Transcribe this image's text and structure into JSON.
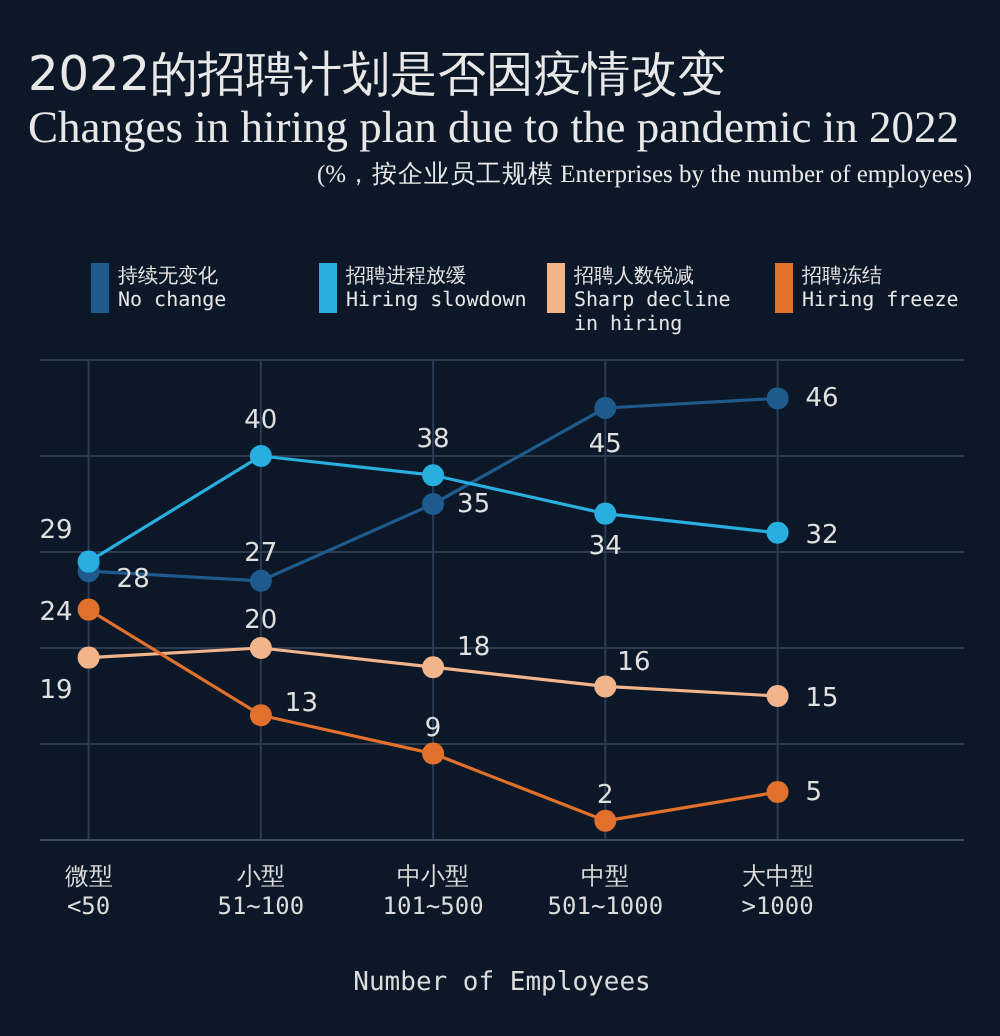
{
  "chart_data": {
    "type": "line",
    "title": "2022的招聘计划是否因疫情改变",
    "subtitle": "Changes in hiring plan due to the pandemic in 2022",
    "annotations": [
      "(%，按企业员工规模  Enterprises by the number of employees)"
    ],
    "xlabel": "Number of Employees",
    "categories": [
      "微型\n<50",
      "小型\n51~100",
      "中小型\n101~500",
      "中型\n501~1000",
      "大中型\n>1000"
    ],
    "series": [
      {
        "name": "持续无变化\nNo change",
        "color": "#1e5a8c",
        "values": [
          28,
          27,
          35,
          45,
          46
        ]
      },
      {
        "name": "招聘进程放缓\nHiring slowdown",
        "color": "#29aee0",
        "values": [
          29,
          40,
          38,
          34,
          32
        ]
      },
      {
        "name": "招聘人数锐减\nSharp decline\nin hiring",
        "color": "#f2b48a",
        "values": [
          19,
          20,
          18,
          16,
          15
        ]
      },
      {
        "name": "招聘冻结\nHiring freeze",
        "color": "#e0702c",
        "values": [
          24,
          13,
          9,
          2,
          5
        ]
      }
    ],
    "ylim": [
      0,
      50
    ],
    "yticks": [
      {
        "value": 10,
        "label": null
      },
      {
        "value": 20,
        "label": null
      },
      {
        "value": 30,
        "label": null
      },
      {
        "value": 40,
        "label": null
      },
      {
        "value": 50,
        "label": null
      }
    ],
    "grid": true,
    "legend": "top",
    "marker": "circle",
    "line_style": "solid",
    "data_labels": true
  }
}
